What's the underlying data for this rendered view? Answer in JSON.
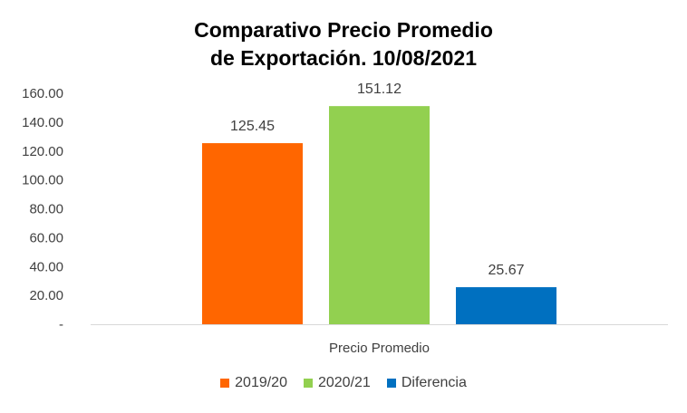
{
  "chart_data": {
    "type": "bar",
    "title_lines": [
      "Comparativo Precio Promedio",
      "de Exportación. 10/08/2021"
    ],
    "categories": [
      "Precio Promedio"
    ],
    "series": [
      {
        "name": "2019/20",
        "values": [
          125.45
        ],
        "label": "125.45",
        "color": "#FF6600"
      },
      {
        "name": "2020/21",
        "values": [
          151.12
        ],
        "label": "151.12",
        "color": "#92D050"
      },
      {
        "name": "Diferencia",
        "values": [
          25.67
        ],
        "label": "25.67",
        "color": "#0070C0"
      }
    ],
    "ylim": [
      0,
      160
    ],
    "yticks": [
      {
        "value": 0,
        "label": "-"
      },
      {
        "value": 20,
        "label": "20.00"
      },
      {
        "value": 40,
        "label": "40.00"
      },
      {
        "value": 60,
        "label": "60.00"
      },
      {
        "value": 80,
        "label": "80.00"
      },
      {
        "value": 100,
        "label": "100.00"
      },
      {
        "value": 120,
        "label": "120.00"
      },
      {
        "value": 140,
        "label": "140.00"
      },
      {
        "value": 160,
        "label": "160.00"
      }
    ],
    "grid": false,
    "legend_position": "bottom"
  }
}
